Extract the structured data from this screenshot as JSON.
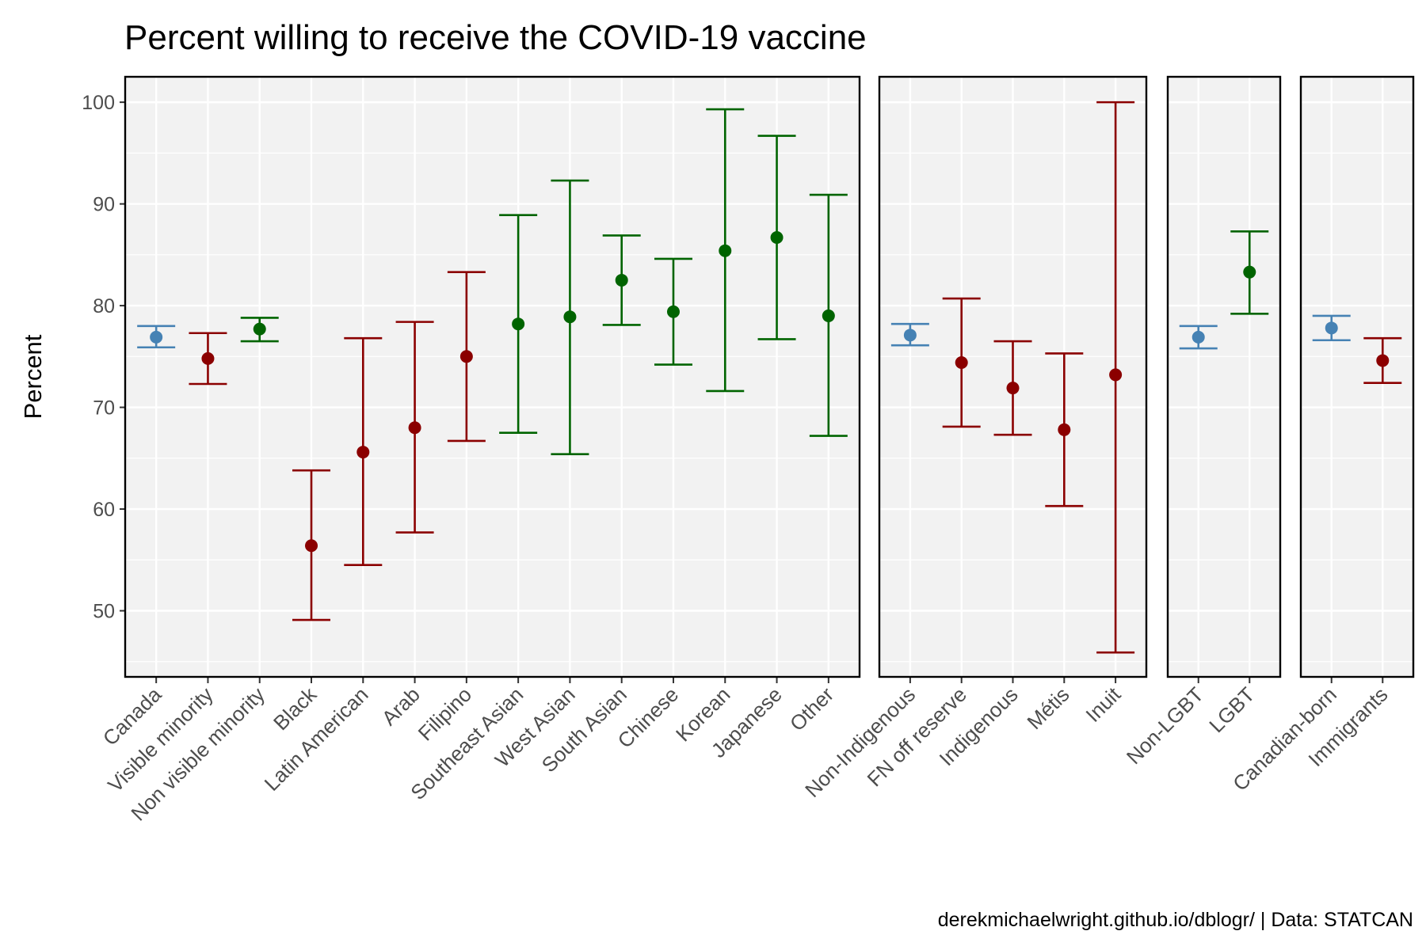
{
  "title": "Percent willing to receive the COVID-19 vaccine",
  "caption": "derekmichaelwright.github.io/dblogr/ | Data: STATCAN",
  "colors": {
    "reference": "#4682b4",
    "lower": "#8b0000",
    "higher": "#006400",
    "panel_bg": "#f2f2f2",
    "grid": "#ffffff",
    "axis_text": "#4d4d4d"
  },
  "chart_data": {
    "type": "scatter",
    "title": "Percent willing to receive the COVID-19 vaccine",
    "xlabel": "",
    "ylabel": "Percent",
    "ylim": [
      43.5,
      102.5
    ],
    "yticks": [
      50,
      60,
      70,
      80,
      90,
      100
    ],
    "grid": true,
    "legend": "none",
    "facets": [
      {
        "points": [
          {
            "label": "Canada",
            "value": 76.9,
            "lower": 75.9,
            "upper": 78.0,
            "group": "reference"
          },
          {
            "label": "Visible minority",
            "value": 74.8,
            "lower": 72.3,
            "upper": 77.3,
            "group": "lower"
          },
          {
            "label": "Non visible minority",
            "value": 77.7,
            "lower": 76.5,
            "upper": 78.8,
            "group": "higher"
          },
          {
            "label": "Black",
            "value": 56.4,
            "lower": 49.1,
            "upper": 63.8,
            "group": "lower"
          },
          {
            "label": "Latin American",
            "value": 65.6,
            "lower": 54.5,
            "upper": 76.8,
            "group": "lower"
          },
          {
            "label": "Arab",
            "value": 68.0,
            "lower": 57.7,
            "upper": 78.4,
            "group": "lower"
          },
          {
            "label": "Filipino",
            "value": 75.0,
            "lower": 66.7,
            "upper": 83.3,
            "group": "lower"
          },
          {
            "label": "Southeast Asian",
            "value": 78.2,
            "lower": 67.5,
            "upper": 88.9,
            "group": "higher"
          },
          {
            "label": "West Asian",
            "value": 78.9,
            "lower": 65.4,
            "upper": 92.3,
            "group": "higher"
          },
          {
            "label": "South Asian",
            "value": 82.5,
            "lower": 78.1,
            "upper": 86.9,
            "group": "higher"
          },
          {
            "label": "Chinese",
            "value": 79.4,
            "lower": 74.2,
            "upper": 84.6,
            "group": "higher"
          },
          {
            "label": "Korean",
            "value": 85.4,
            "lower": 71.6,
            "upper": 99.3,
            "group": "higher"
          },
          {
            "label": "Japanese",
            "value": 86.7,
            "lower": 76.7,
            "upper": 96.7,
            "group": "higher"
          },
          {
            "label": "Other",
            "value": 79.0,
            "lower": 67.2,
            "upper": 90.9,
            "group": "higher"
          }
        ]
      },
      {
        "points": [
          {
            "label": "Non-Indigenous",
            "value": 77.1,
            "lower": 76.1,
            "upper": 78.2,
            "group": "reference"
          },
          {
            "label": "FN off reserve",
            "value": 74.4,
            "lower": 68.1,
            "upper": 80.7,
            "group": "lower"
          },
          {
            "label": "Indigenous",
            "value": 71.9,
            "lower": 67.3,
            "upper": 76.5,
            "group": "lower"
          },
          {
            "label": "Métis",
            "value": 67.8,
            "lower": 60.3,
            "upper": 75.3,
            "group": "lower"
          },
          {
            "label": "Inuit",
            "value": 73.2,
            "lower": 45.9,
            "upper": 100.0,
            "group": "lower"
          }
        ]
      },
      {
        "points": [
          {
            "label": "Non-LGBT",
            "value": 76.9,
            "lower": 75.8,
            "upper": 78.0,
            "group": "reference"
          },
          {
            "label": "LGBT",
            "value": 83.3,
            "lower": 79.2,
            "upper": 87.3,
            "group": "higher"
          }
        ]
      },
      {
        "points": [
          {
            "label": "Canadian-born",
            "value": 77.8,
            "lower": 76.6,
            "upper": 79.0,
            "group": "reference"
          },
          {
            "label": "Immigrants",
            "value": 74.6,
            "lower": 72.4,
            "upper": 76.8,
            "group": "lower"
          }
        ]
      }
    ]
  }
}
